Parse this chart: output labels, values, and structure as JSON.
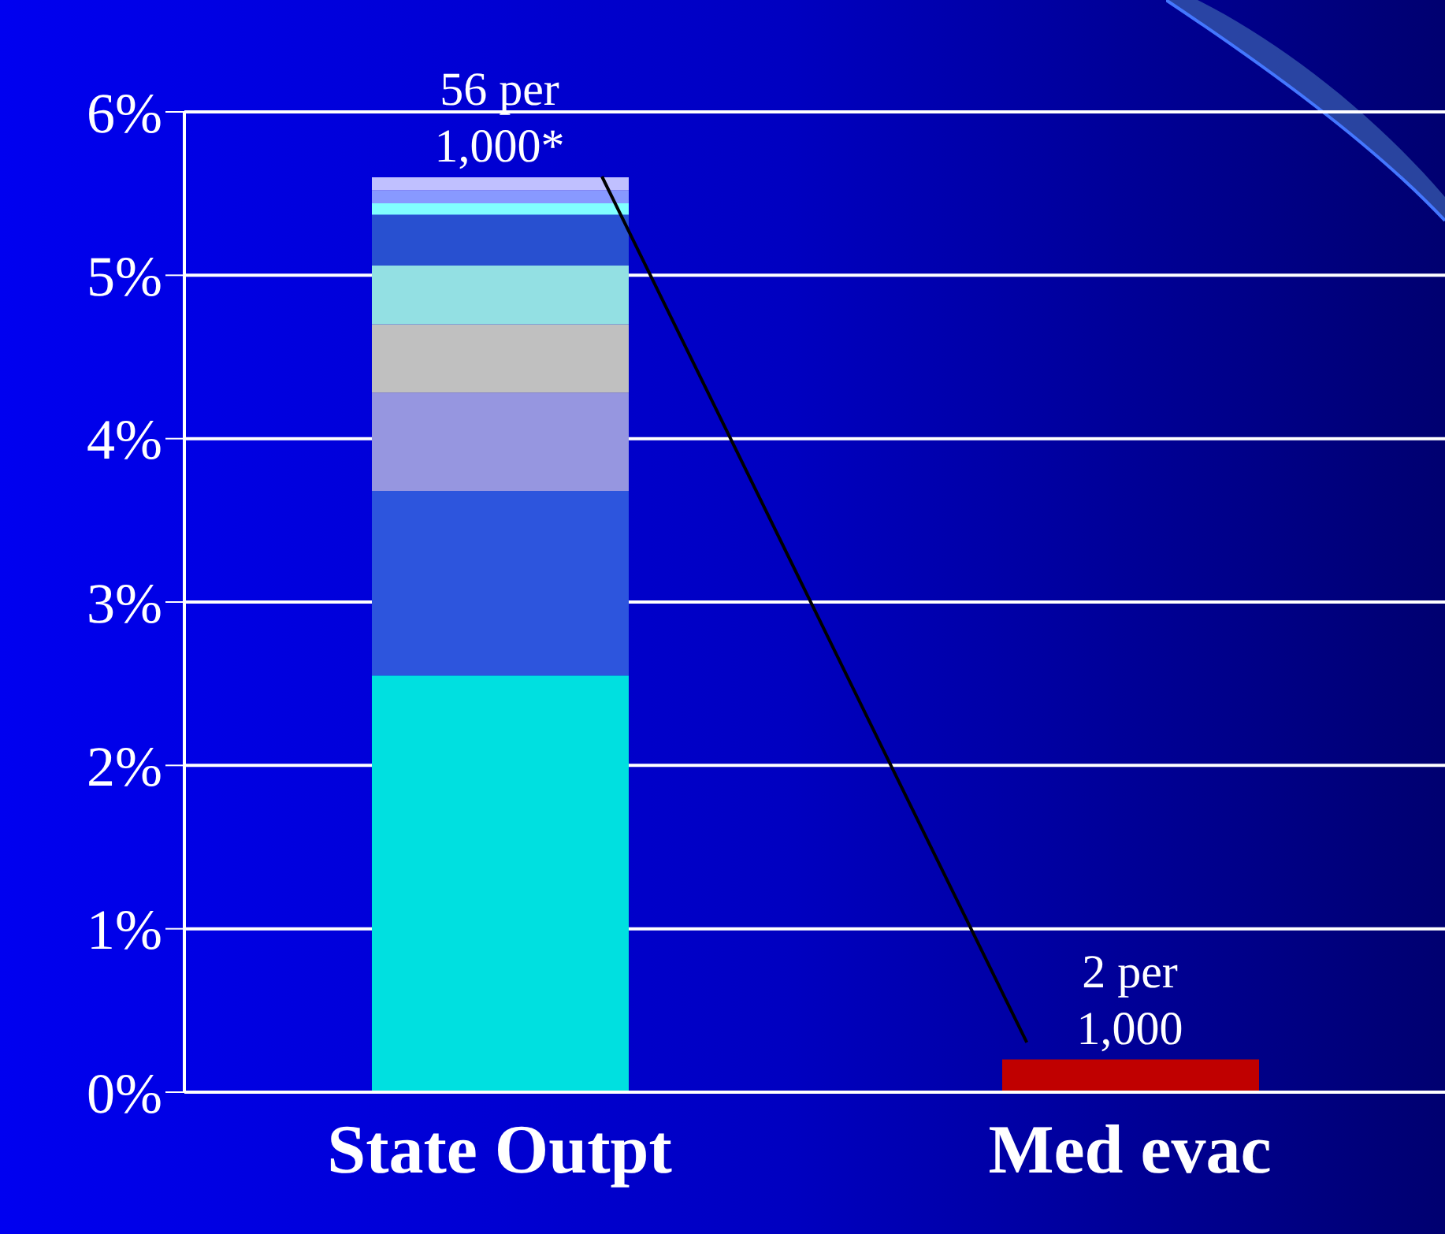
{
  "chart_data": {
    "type": "bar",
    "stacked": true,
    "categories": [
      "State Outpt",
      "Med evac"
    ],
    "series": [
      {
        "color": "#00e0e0",
        "colors": [
          "#00e0e0",
          "#c00000"
        ],
        "values": [
          2.55,
          0.2
        ]
      },
      {
        "color": "#2d55dd",
        "values": [
          1.13,
          null
        ]
      },
      {
        "color": "#9696e0",
        "values": [
          0.6,
          null
        ]
      },
      {
        "color": "#c0c0c0",
        "values": [
          0.42,
          null
        ]
      },
      {
        "color": "#93e0e3",
        "values": [
          0.36,
          null
        ]
      },
      {
        "color": "#2850d0",
        "values": [
          0.31,
          null
        ]
      },
      {
        "color": "#80ffff",
        "values": [
          0.07,
          null
        ]
      },
      {
        "color": "#8899ff",
        "values": [
          0.08,
          null
        ]
      },
      {
        "color": "#c0c0ff",
        "values": [
          0.08,
          null
        ]
      }
    ],
    "ylim": [
      0,
      6
    ],
    "yticks": [
      {
        "value": 0,
        "label": "0%"
      },
      {
        "value": 1,
        "label": "1%"
      },
      {
        "value": 2,
        "label": "2%"
      },
      {
        "value": 3,
        "label": "3%"
      },
      {
        "value": 4,
        "label": "4%"
      },
      {
        "value": 5,
        "label": "5%"
      },
      {
        "value": 6,
        "label": "6%"
      }
    ],
    "grid": "y",
    "legend": false,
    "annotations": [
      {
        "text": "56 per 1,000*",
        "x": "State Outpt",
        "y": 5.6
      },
      {
        "text": "2 per 1,000",
        "x": "Med evac",
        "y": 0.2
      }
    ]
  }
}
